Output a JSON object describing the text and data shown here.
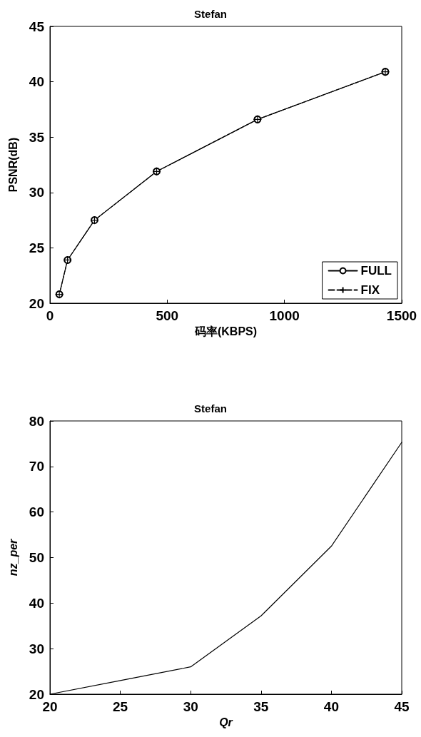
{
  "chart_data": [
    {
      "type": "line",
      "title": "Stefan",
      "xlabel": "码率(KBPS)",
      "ylabel": "PSNR(dB)",
      "xlim": [
        0,
        1500
      ],
      "xticks": [
        0,
        500,
        1000,
        1500
      ],
      "ylim": [
        20,
        45
      ],
      "yticks": [
        20,
        25,
        30,
        35,
        40,
        45
      ],
      "grid": false,
      "legend": "bottom right",
      "x": [
        40,
        75,
        190,
        455,
        885,
        1430
      ],
      "series": [
        {
          "name": "FULL",
          "color": "#000000",
          "marker": "circle",
          "line_style": "solid",
          "values": [
            20.8,
            23.9,
            27.5,
            31.9,
            36.6,
            40.9
          ]
        },
        {
          "name": "FIX",
          "color": "#000000",
          "marker": "cross",
          "line_style": "dashed",
          "values": [
            20.8,
            23.9,
            27.5,
            31.9,
            36.6,
            40.9
          ]
        }
      ]
    },
    {
      "type": "line",
      "title": "Stefan",
      "xlabel": "Qr",
      "ylabel": "nz_per",
      "xlim": [
        20,
        45
      ],
      "xticks": [
        20,
        25,
        30,
        35,
        40,
        45
      ],
      "ylim": [
        20,
        80
      ],
      "yticks": [
        20,
        30,
        40,
        50,
        60,
        70,
        80
      ],
      "grid": false,
      "legend": false,
      "marker": "none",
      "x": [
        20,
        25,
        30,
        35,
        40,
        45
      ],
      "series": [
        {
          "color": "#000000",
          "values": [
            20,
            23,
            26,
            37.2,
            52.5,
            75.3
          ]
        }
      ]
    }
  ]
}
